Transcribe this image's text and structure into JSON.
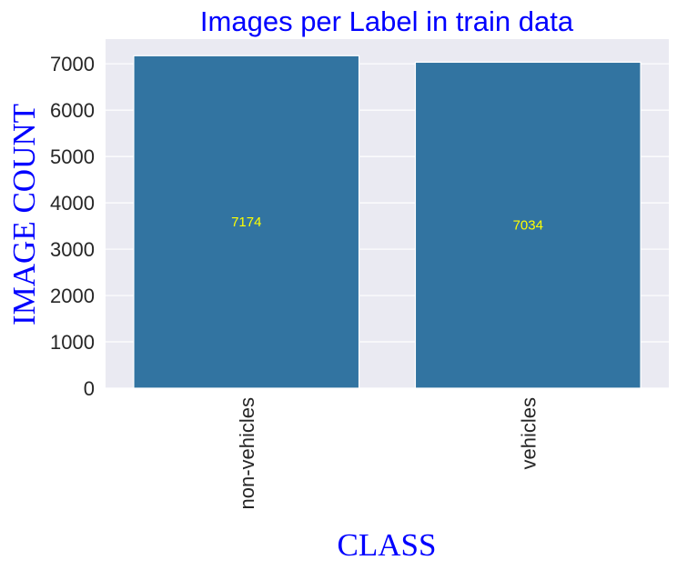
{
  "chart_data": {
    "type": "bar",
    "title": "Images per Label in train data",
    "xlabel": "CLASS",
    "ylabel": "IMAGE COUNT",
    "categories": [
      "non-vehicles",
      "vehicles"
    ],
    "values": [
      7174,
      7034
    ],
    "bar_labels": [
      "7174",
      "7034"
    ],
    "yticks": [
      0,
      1000,
      2000,
      3000,
      4000,
      5000,
      6000,
      7000
    ],
    "ytick_labels": [
      "0",
      "1000",
      "2000",
      "3000",
      "4000",
      "5000",
      "6000",
      "7000"
    ],
    "ylim": [
      0,
      7533
    ],
    "grid": true,
    "legend": "none",
    "colors": {
      "bar": "#3274a1",
      "background": "#eaeaf2",
      "grid": "#ffffff",
      "title": "#0000ff",
      "axis_label": "#0000ff",
      "bar_label": "#ffff00",
      "tick_label": "#262626"
    }
  }
}
